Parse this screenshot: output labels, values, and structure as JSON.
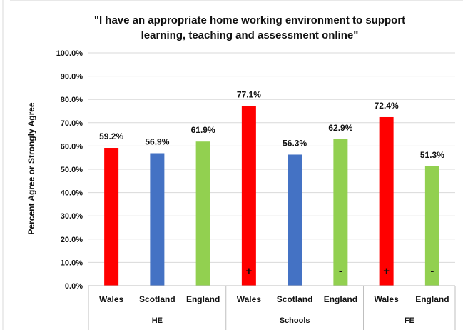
{
  "chart_data": {
    "type": "bar",
    "title_lines": [
      "\"I have an appropriate home working environment to support",
      "learning, teaching and assessment online\""
    ],
    "ylabel": "Percent Agree or Strongly Agree",
    "ylim": [
      0,
      100
    ],
    "yticks": [
      "0.0%",
      "10.0%",
      "20.0%",
      "30.0%",
      "40.0%",
      "50.0%",
      "60.0%",
      "70.0%",
      "80.0%",
      "90.0%",
      "100.0%"
    ],
    "grid": true,
    "groups": [
      {
        "name": "HE",
        "bars": [
          {
            "category": "Wales",
            "value": 59.2,
            "label": "59.2%",
            "color": "#ff0000",
            "marker": ""
          },
          {
            "category": "Scotland",
            "value": 56.9,
            "label": "56.9%",
            "color": "#4472c4",
            "marker": ""
          },
          {
            "category": "England",
            "value": 61.9,
            "label": "61.9%",
            "color": "#92d050",
            "marker": ""
          }
        ]
      },
      {
        "name": "Schools",
        "bars": [
          {
            "category": "Wales",
            "value": 77.1,
            "label": "77.1%",
            "color": "#ff0000",
            "marker": "+"
          },
          {
            "category": "Scotland",
            "value": 56.3,
            "label": "56.3%",
            "color": "#4472c4",
            "marker": ""
          },
          {
            "category": "England",
            "value": 62.9,
            "label": "62.9%",
            "color": "#92d050",
            "marker": "-"
          }
        ]
      },
      {
        "name": "FE",
        "bars": [
          {
            "category": "Wales",
            "value": 72.4,
            "label": "72.4%",
            "color": "#ff0000",
            "marker": "+"
          },
          {
            "category": "England",
            "value": 51.3,
            "label": "51.3%",
            "color": "#92d050",
            "marker": "-"
          }
        ]
      }
    ]
  }
}
